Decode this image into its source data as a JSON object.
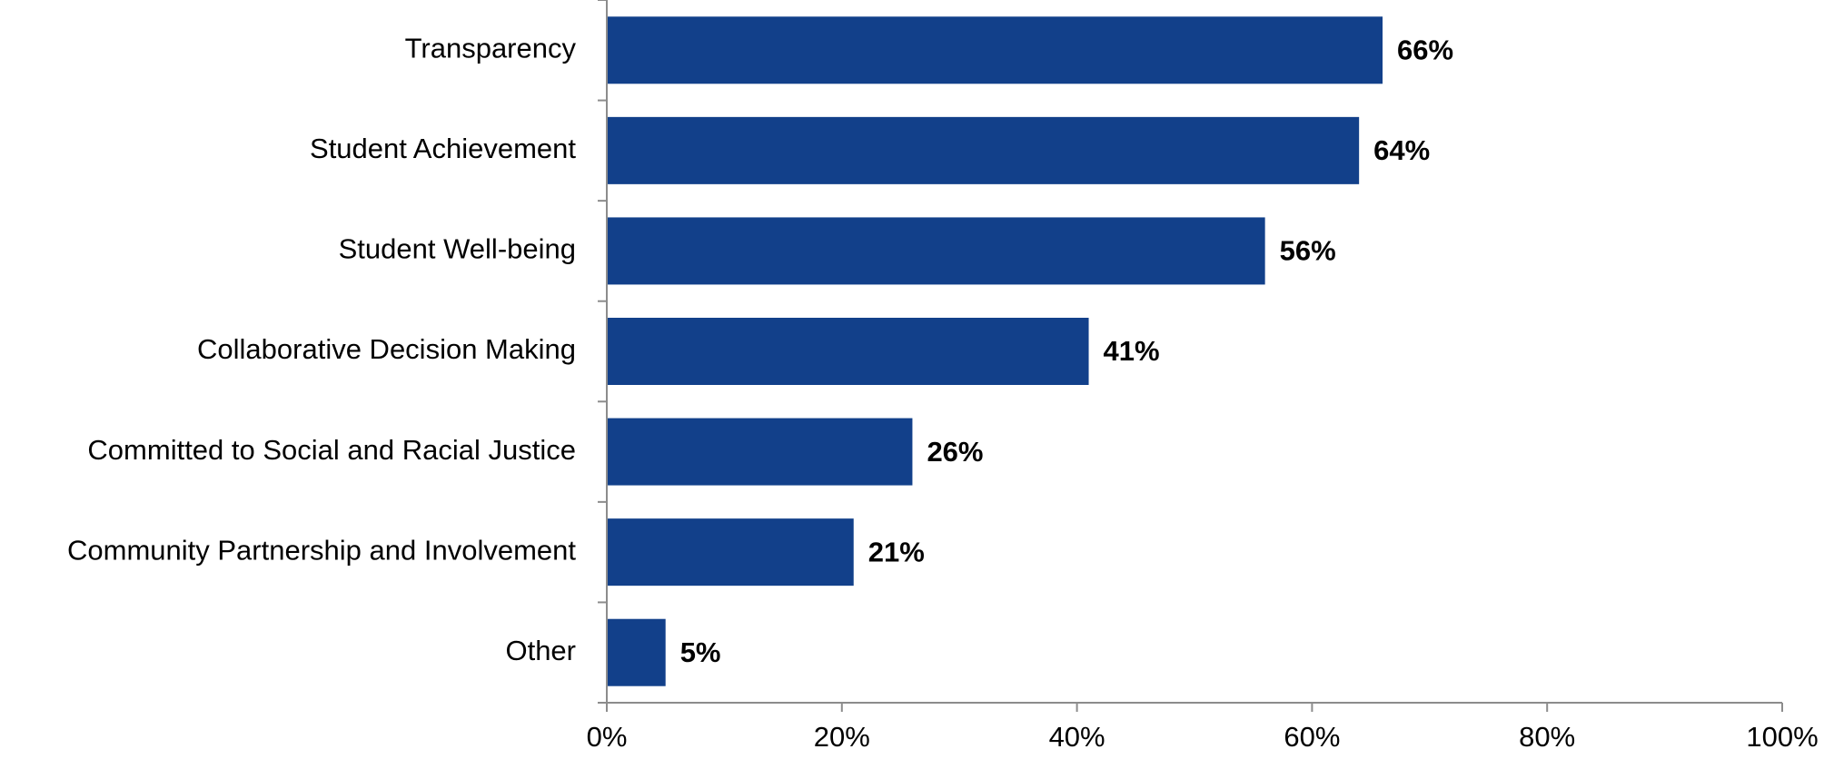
{
  "chart_data": {
    "type": "bar",
    "orientation": "horizontal",
    "title": "",
    "xlabel": "",
    "ylabel": "",
    "categories": [
      "Transparency",
      "Student Achievement",
      "Student Well-being",
      "Collaborative Decision Making",
      "Committed to Social and Racial Justice",
      "Community Partnership and Involvement",
      "Other"
    ],
    "values": [
      66,
      64,
      56,
      41,
      26,
      21,
      5
    ],
    "data_labels": [
      "66%",
      "64%",
      "56%",
      "41%",
      "26%",
      "21%",
      "5%"
    ],
    "xlim": [
      0,
      100
    ],
    "x_ticks": [
      0,
      20,
      40,
      60,
      80,
      100
    ],
    "x_tick_labels": [
      "0%",
      "20%",
      "40%",
      "60%",
      "80%",
      "100%"
    ],
    "grid": false,
    "legend": "none",
    "bar_color": "#12408a"
  }
}
